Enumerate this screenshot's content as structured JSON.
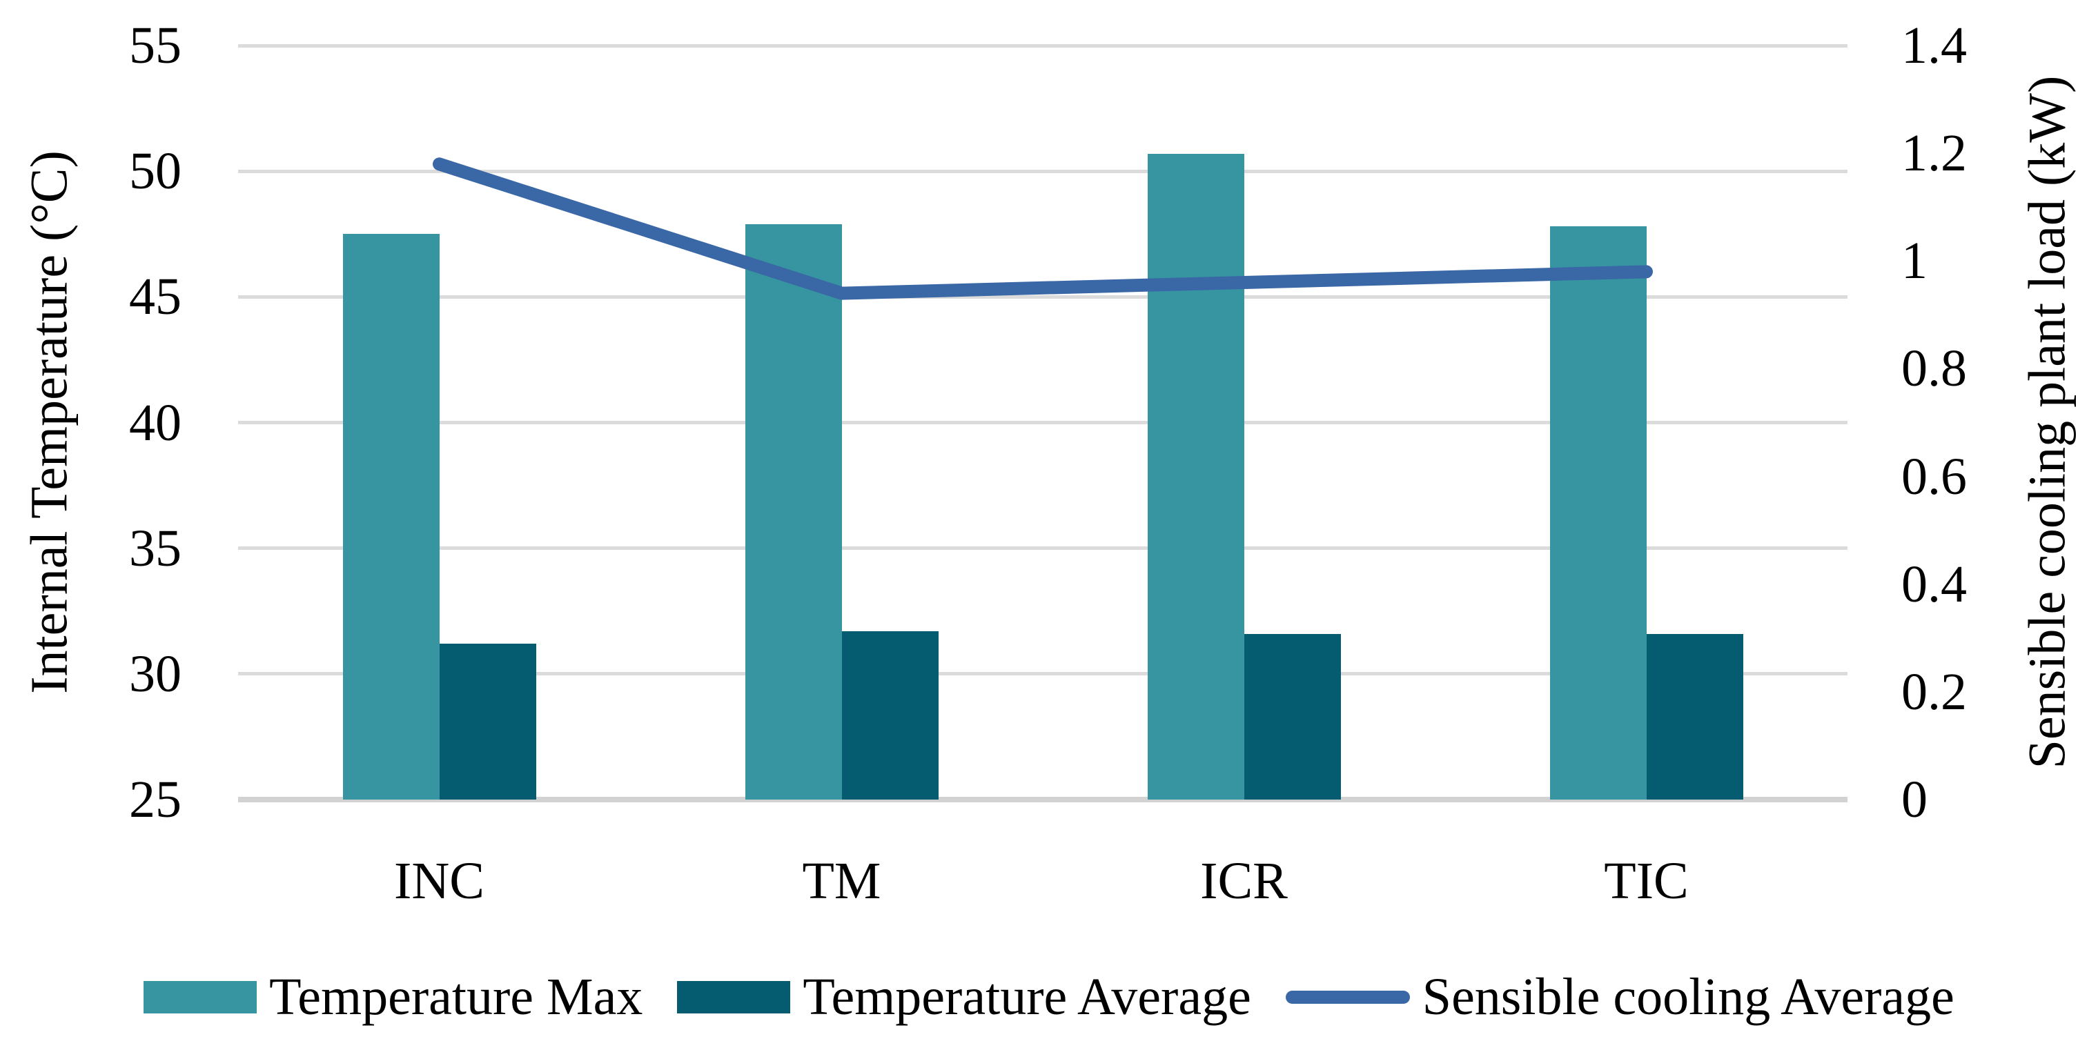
{
  "chart_data": {
    "type": "bar",
    "subtype": "grouped-bars-with-line-overlay",
    "title": "",
    "categories": [
      "INC",
      "TM",
      "ICR",
      "TIC"
    ],
    "bar_series": [
      {
        "name": "Temperature Max",
        "axis": "left",
        "color": "#3795A1",
        "values": [
          47.5,
          47.9,
          50.7,
          47.8
        ]
      },
      {
        "name": "Temperature Average",
        "axis": "left",
        "color": "#055C70",
        "values": [
          31.2,
          31.7,
          31.6,
          31.6
        ]
      }
    ],
    "line_series": [
      {
        "name": "Sensible cooling Average",
        "axis": "right",
        "color": "#3A67A5",
        "values": [
          1.18,
          0.94,
          0.96,
          0.98
        ]
      }
    ],
    "left_axis": {
      "title": "Internal Temperature (°C)",
      "min": 25,
      "max": 55,
      "step": 5,
      "tick_labels": [
        "55",
        "50",
        "45",
        "40",
        "35",
        "30",
        "25"
      ]
    },
    "right_axis": {
      "title": "Sensible cooling plant load (kW)",
      "min": 0,
      "max": 1.4,
      "step": 0.2,
      "tick_labels": [
        "1.4",
        "1.2",
        "1",
        "0.8",
        "0.6",
        "0.4",
        "0.2",
        "0"
      ]
    },
    "grid": {
      "show": true,
      "color": "#DBDBDB",
      "baseline_color": "#D2D2D2"
    },
    "legend": {
      "position": "bottom",
      "items": [
        "Temperature Max",
        "Temperature Average",
        "Sensible cooling Average"
      ]
    }
  }
}
